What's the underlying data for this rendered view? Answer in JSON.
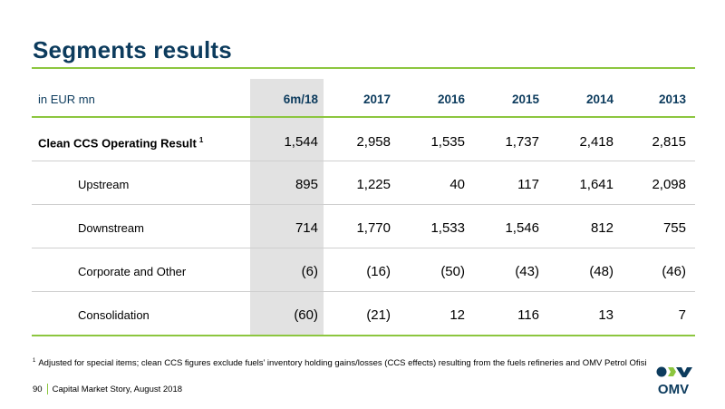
{
  "title": "Segments results",
  "table": {
    "unit_label": "in EUR mn",
    "columns": [
      "6m/18",
      "2017",
      "2016",
      "2015",
      "2014",
      "2013"
    ],
    "rows": [
      {
        "label": "Clean CCS Operating Result",
        "footnote_ref": "1",
        "values": [
          "1,544",
          "2,958",
          "1,535",
          "1,737",
          "2,418",
          "2,815"
        ]
      },
      {
        "label": "Upstream",
        "values": [
          "895",
          "1,225",
          "40",
          "117",
          "1,641",
          "2,098"
        ]
      },
      {
        "label": "Downstream",
        "values": [
          "714",
          "1,770",
          "1,533",
          "1,546",
          "812",
          "755"
        ]
      },
      {
        "label": "Corporate and Other",
        "values": [
          "(6)",
          "(16)",
          "(50)",
          "(43)",
          "(48)",
          "(46)"
        ]
      },
      {
        "label": "Consolidation",
        "values": [
          "(60)",
          "(21)",
          "12",
          "116",
          "13",
          "7"
        ]
      }
    ]
  },
  "footnote": {
    "mark": "1",
    "text": "Adjusted for special items; clean CCS figures exclude fuels’ inventory holding gains/losses (CCS effects) resulting from the fuels refineries and OMV Petrol Ofisi"
  },
  "footer": {
    "page_number": "90",
    "text": "Capital Market Story, August 2018"
  },
  "logo": {
    "text": "OMV",
    "color": "#0c3b5d",
    "accent": "#8cc63f"
  }
}
